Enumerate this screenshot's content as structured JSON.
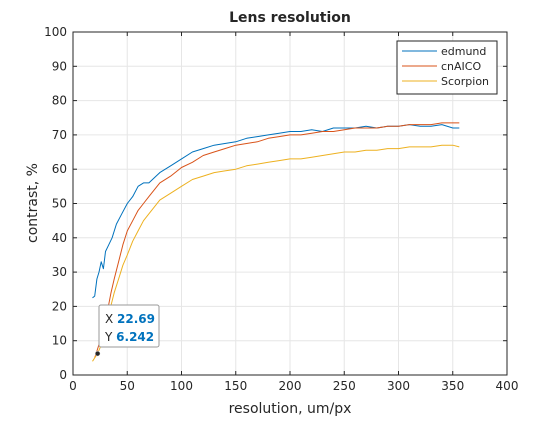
{
  "chart_data": {
    "type": "line",
    "title": "Lens resolution",
    "xlabel": "resolution, um/px",
    "ylabel": "contrast, %",
    "xlim": [
      0,
      400
    ],
    "ylim": [
      0,
      100
    ],
    "xticks": [
      0,
      50,
      100,
      150,
      200,
      250,
      300,
      350,
      400
    ],
    "yticks": [
      0,
      10,
      20,
      30,
      40,
      50,
      60,
      70,
      80,
      90,
      100
    ],
    "grid": true,
    "legend_position": "top-right",
    "series": [
      {
        "name": "edmund",
        "color": "#0072BD",
        "x": [
          18,
          20,
          22,
          24,
          26,
          28,
          30,
          33,
          36,
          40,
          45,
          50,
          55,
          60,
          65,
          70,
          80,
          90,
          100,
          110,
          120,
          130,
          140,
          150,
          160,
          170,
          180,
          190,
          200,
          210,
          220,
          230,
          240,
          250,
          260,
          270,
          280,
          290,
          300,
          310,
          320,
          330,
          340,
          350,
          356
        ],
        "y": [
          22.5,
          23,
          28,
          30,
          33,
          31,
          36,
          38,
          40,
          44,
          47,
          50,
          52,
          55,
          56,
          56,
          59,
          61,
          63,
          65,
          66,
          67,
          67.5,
          68,
          69,
          69.5,
          70,
          70.5,
          71,
          71,
          71.5,
          71,
          72,
          72,
          72,
          72.5,
          72,
          72.5,
          72.5,
          73,
          72.5,
          72.5,
          73,
          72,
          72
        ]
      },
      {
        "name": "cnAICO",
        "color": "#D95319",
        "x": [
          20,
          23,
          26,
          29,
          32,
          35,
          38,
          42,
          46,
          50,
          55,
          60,
          65,
          70,
          80,
          90,
          100,
          110,
          120,
          130,
          140,
          150,
          160,
          170,
          180,
          190,
          200,
          210,
          220,
          230,
          240,
          250,
          260,
          270,
          280,
          290,
          300,
          310,
          320,
          330,
          340,
          350,
          356
        ],
        "y": [
          5,
          8,
          11,
          15,
          19,
          24,
          28,
          33,
          38,
          42,
          45,
          48,
          50,
          52,
          56,
          58,
          60.5,
          62,
          64,
          65,
          66,
          67,
          67.5,
          68,
          69,
          69.5,
          70,
          70,
          70.5,
          71,
          71,
          71.5,
          72,
          72,
          72,
          72.5,
          72.5,
          73,
          73,
          73,
          73.5,
          73.5,
          73.5
        ]
      },
      {
        "name": "Scorpion",
        "color": "#EDB120",
        "x": [
          18,
          20,
          22.69,
          25,
          28,
          31,
          34,
          38,
          42,
          46,
          50,
          55,
          60,
          65,
          70,
          80,
          90,
          100,
          110,
          120,
          130,
          140,
          150,
          160,
          170,
          180,
          190,
          200,
          210,
          220,
          230,
          240,
          250,
          260,
          270,
          280,
          290,
          300,
          310,
          320,
          330,
          340,
          350,
          356
        ],
        "y": [
          4,
          5,
          6.242,
          8,
          11,
          15,
          19,
          24,
          28,
          32,
          35,
          39,
          42,
          45,
          47,
          51,
          53,
          55,
          57,
          58,
          59,
          59.5,
          60,
          61,
          61.5,
          62,
          62.5,
          63,
          63,
          63.5,
          64,
          64.5,
          65,
          65,
          65.5,
          65.5,
          66,
          66,
          66.5,
          66.5,
          66.5,
          67,
          67,
          66.5
        ]
      }
    ],
    "datatip": {
      "series": "Scorpion",
      "x_label": "X",
      "y_label": "Y",
      "x_value": "22.69",
      "y_value": "6.242",
      "x": 22.69,
      "y": 6.242
    }
  },
  "style": {
    "axes_color": "#262626",
    "grid_color": "#e6e6e6",
    "datatip_value_color": "#0072BD"
  }
}
